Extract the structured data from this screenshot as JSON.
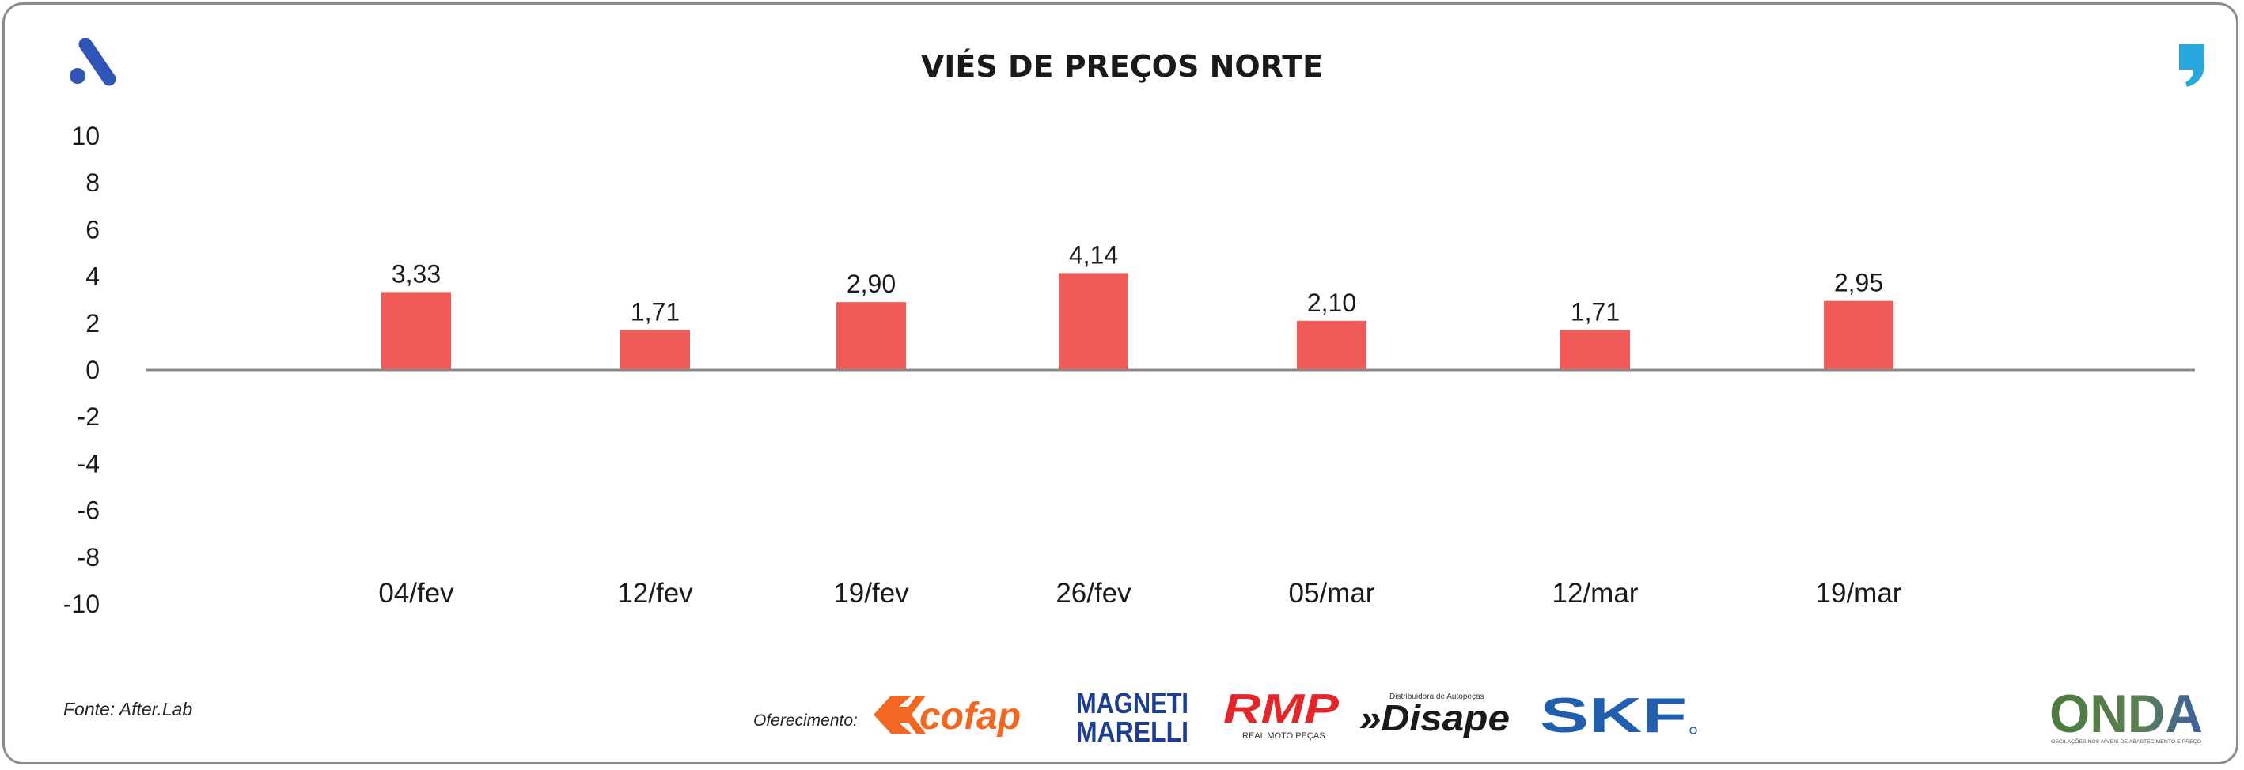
{
  "chart_data": {
    "type": "bar",
    "title": "VIÉS DE PREÇOS NORTE",
    "categories": [
      "04/fev",
      "12/fev",
      "19/fev",
      "26/fev",
      "05/mar",
      "12/mar",
      "19/mar"
    ],
    "values": [
      3.33,
      1.71,
      2.9,
      4.14,
      2.1,
      1.71,
      2.95
    ],
    "data_labels": [
      "3,33",
      "1,71",
      "2,90",
      "4,14",
      "2,10",
      "1,71",
      "2,95"
    ],
    "yticks": [
      "10",
      "8",
      "6",
      "4",
      "2",
      "0",
      "-2",
      "-4",
      "-6",
      "-8",
      "-10"
    ],
    "ylim": [
      -10,
      10
    ],
    "xlabel": "",
    "ylabel": "",
    "grid": false,
    "legend": "none",
    "bar_color": "#f05a57"
  },
  "footer": {
    "source": "Fonte: After.Lab",
    "sponsor_label": "Oferecimento:",
    "sponsors": {
      "cofap": "cofap",
      "magneti_1": "MAGNETI",
      "magneti_2": "MARELLI",
      "rmp": "RMP",
      "rmp_sub": "REAL MOTO PEÇAS",
      "disape": "»Disape",
      "disape_sub": "Distribuidora de Autopeças",
      "skf": "SKF"
    },
    "onda": "ONDA",
    "onda_sub": "OSCILAÇÕES NOS NÍVEIS DE ABASTECIMENTO E PREÇO"
  },
  "colors": {
    "brand_blue": "#2f55b7",
    "quote_cyan": "#29a8e0",
    "cofap_orange": "#f26722",
    "magneti_blue": "#1d3d8f",
    "rmp_red": "#e3262a",
    "skf_blue": "#1f5fae",
    "onda_green": "#4b7a3f"
  }
}
